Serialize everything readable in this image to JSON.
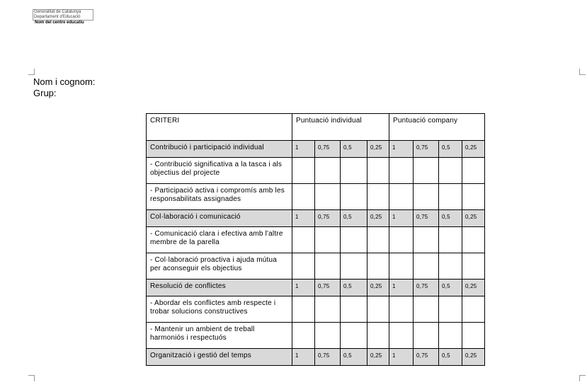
{
  "header": {
    "logo_lines": [
      "Generalitat de Catalunya",
      "Departament d'Educació"
    ],
    "centre": "Nom del centre educatiu"
  },
  "form": {
    "name_label": "Nom i cognom:",
    "group_label": "Grup:"
  },
  "table": {
    "headers": [
      "CRITERI",
      "Puntuació individual",
      "Puntuació company"
    ],
    "scores": [
      "1",
      "0,75",
      "0,5",
      "0,25",
      "1",
      "0,75",
      "0,5",
      "0,25"
    ],
    "groups": [
      {
        "title": "Contribució i participació individual",
        "items": [
          "- Contribució significativa a la tasca i als objectius del projecte",
          "- Participació activa i compromís amb les responsabilitats assignades"
        ]
      },
      {
        "title": "Col·laboració i comunicació",
        "items": [
          "- Comunicació clara i efectiva amb l'altre membre de la parella",
          "- Col·laboració proactiva i ajuda mútua per aconseguir els objectius"
        ]
      },
      {
        "title": "Resolució de conflictes",
        "items": [
          "- Abordar els conflictes amb respecte i trobar solucions constructives",
          "- Mantenir un ambient de treball harmoniós i respectuós"
        ]
      },
      {
        "title": "Organització i gestió del temps",
        "items": []
      }
    ]
  }
}
